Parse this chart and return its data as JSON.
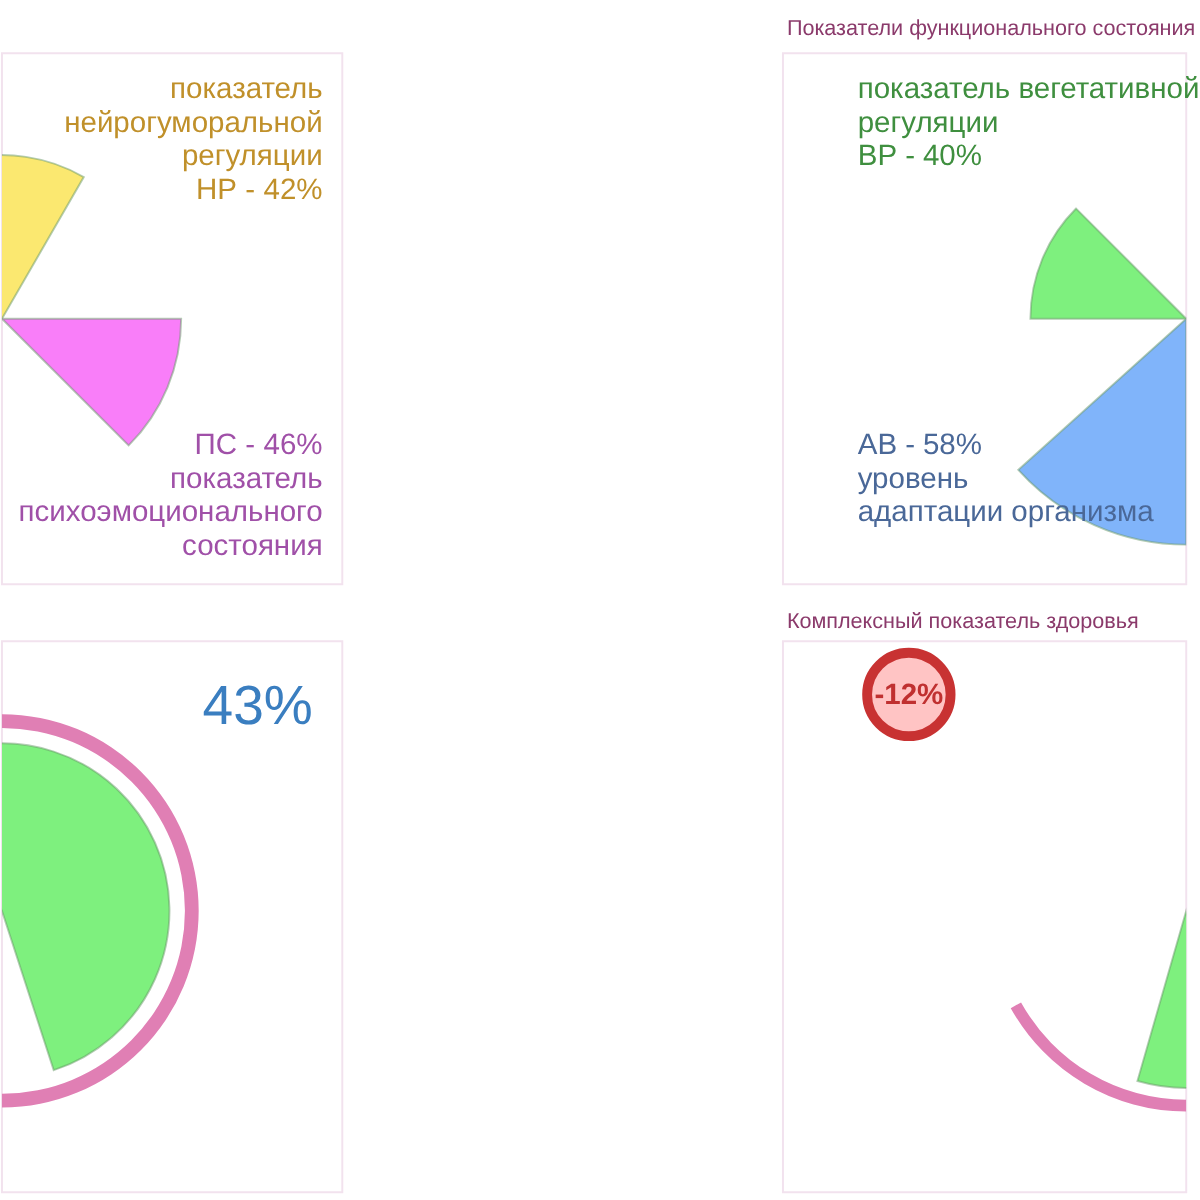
{
  "chart_data": [
    {
      "type": "other",
      "categories": [
        "НР -",
        "ПС -"
      ],
      "values": [
        42,
        46
      ],
      "value_labels": [
        "42%",
        "46%"
      ],
      "colors": [
        "#fbe870",
        "#f97ef9"
      ],
      "annotations": [
        "показатель\nнейрогуморальной\nрегуляции",
        "показатель\nпсихоэмоционального\nсостояния"
      ]
    },
    {
      "type": "other",
      "title": "Показатели функционального состояния",
      "categories": [
        "ВР -",
        "АВ -"
      ],
      "values": [
        40,
        58
      ],
      "value_labels": [
        "40%",
        "58%"
      ],
      "colors": [
        "#7ef07e",
        "#80b4fa"
      ],
      "annotations": [
        "показатель вегетативной\nрегуляции",
        "уровень\nадаптации организма"
      ]
    },
    {
      "type": "other",
      "categories": [
        null
      ],
      "values": [
        43
      ],
      "value_labels": [
        "43%"
      ],
      "colors": [
        "#7ef07e"
      ]
    },
    {
      "type": "other",
      "title": "Комплексный показатель здоровья",
      "categories": [
        null
      ],
      "values": [
        -12
      ],
      "value_labels": [
        "-12%"
      ],
      "colors": [
        "#ffc4c4"
      ]
    }
  ]
}
